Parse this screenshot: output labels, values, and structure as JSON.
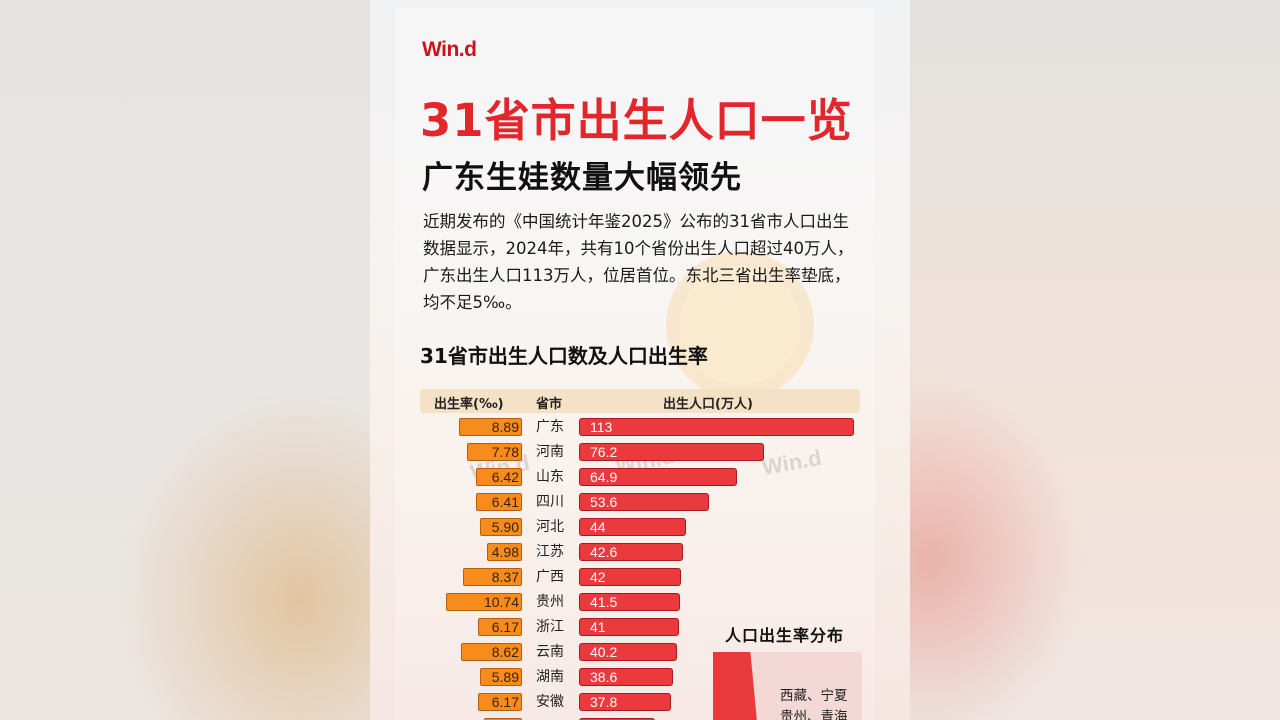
{
  "brand": {
    "logo": "Win.d"
  },
  "header": {
    "title": "31省市出生人口一览",
    "subtitle": "广东生娃数量大幅领先"
  },
  "description": "近期发布的《中国统计年鉴2025》公布的31省市人口出生数据显示，2024年，共有10个省份出生人口超过40万人，广东出生人口113万人，位居首位。东北三省出生率垫底，均不足5‰。",
  "section_title": "31省市出生人口数及人口出生率",
  "table_head": {
    "rate": "出生率(‰)",
    "province": "省市",
    "population": "出生人口(万人)"
  },
  "watermarks": [
    "Win.d",
    "Win.d",
    "Win.d"
  ],
  "distribution": {
    "title": "人口出生率分布",
    "label_line1": "西藏、宁夏",
    "label_line2": "贵州、青海"
  },
  "colors": {
    "title_red": "#e3262b",
    "rate_bar": "#f78c1c",
    "pop_bar": "#ea3a3e",
    "header_band": "#f5debe"
  },
  "chart_data": {
    "type": "bar",
    "title": "31省市出生人口数及人口出生率",
    "categories": [
      "广东",
      "河南",
      "山东",
      "四川",
      "河北",
      "江苏",
      "广西",
      "贵州",
      "浙江",
      "云南",
      "湖南",
      "安徽"
    ],
    "series": [
      {
        "name": "出生率(‰)",
        "values": [
          8.89,
          7.78,
          6.42,
          6.41,
          5.9,
          4.98,
          8.37,
          10.74,
          6.17,
          8.62,
          5.89,
          6.17
        ],
        "labels": [
          "8.89",
          "7.78",
          "6.42",
          "6.41",
          "5.90",
          "4.98",
          "8.37",
          "10.74",
          "6.17",
          "8.62",
          "5.89",
          "6.17"
        ]
      },
      {
        "name": "出生人口(万人)",
        "values": [
          113,
          76.2,
          64.9,
          53.6,
          44,
          42.6,
          42,
          41.5,
          41,
          40.2,
          38.6,
          37.8
        ],
        "labels": [
          "113",
          "76.2",
          "64.9",
          "53.6",
          "44",
          "42.6",
          "42",
          "41.5",
          "41",
          "40.2",
          "38.6",
          "37.8"
        ]
      }
    ],
    "xlabel": "",
    "ylabel": "省市",
    "orientation": "horizontal",
    "legend": "table header",
    "grid": false
  }
}
